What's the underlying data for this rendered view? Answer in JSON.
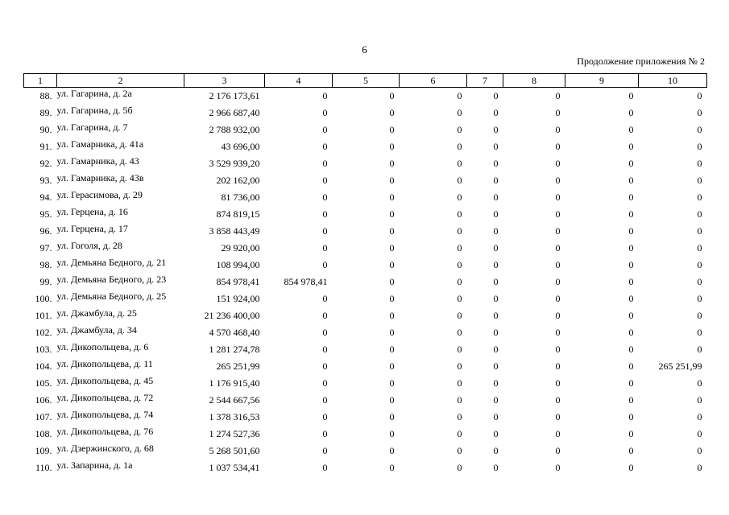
{
  "page_number": "6",
  "continuation_note": "Продолжение приложения № 2",
  "columns": [
    "1",
    "2",
    "3",
    "4",
    "5",
    "6",
    "7",
    "8",
    "9",
    "10"
  ],
  "rows": [
    {
      "n": "88.",
      "address": "ул. Гагарина, д. 2а",
      "c3": "2 176 173,61",
      "c4": "0",
      "c5": "0",
      "c6": "0",
      "c7": "0",
      "c8": "0",
      "c9": "0",
      "c10": "0"
    },
    {
      "n": "89.",
      "address": "ул. Гагарина, д. 5б",
      "c3": "2 966 687,40",
      "c4": "0",
      "c5": "0",
      "c6": "0",
      "c7": "0",
      "c8": "0",
      "c9": "0",
      "c10": "0"
    },
    {
      "n": "90.",
      "address": "ул. Гагарина, д. 7",
      "c3": "2 788 932,00",
      "c4": "0",
      "c5": "0",
      "c6": "0",
      "c7": "0",
      "c8": "0",
      "c9": "0",
      "c10": "0"
    },
    {
      "n": "91.",
      "address": "ул. Гамарника, д. 41а",
      "c3": "43 696,00",
      "c4": "0",
      "c5": "0",
      "c6": "0",
      "c7": "0",
      "c8": "0",
      "c9": "0",
      "c10": "0"
    },
    {
      "n": "92.",
      "address": "ул. Гамарника, д. 43",
      "c3": "3 529 939,20",
      "c4": "0",
      "c5": "0",
      "c6": "0",
      "c7": "0",
      "c8": "0",
      "c9": "0",
      "c10": "0"
    },
    {
      "n": "93.",
      "address": "ул. Гамарника, д. 43в",
      "c3": "202 162,00",
      "c4": "0",
      "c5": "0",
      "c6": "0",
      "c7": "0",
      "c8": "0",
      "c9": "0",
      "c10": "0"
    },
    {
      "n": "94.",
      "address": "ул. Герасимова, д. 29",
      "c3": "81 736,00",
      "c4": "0",
      "c5": "0",
      "c6": "0",
      "c7": "0",
      "c8": "0",
      "c9": "0",
      "c10": "0"
    },
    {
      "n": "95.",
      "address": "ул. Герцена, д. 16",
      "c3": "874 819,15",
      "c4": "0",
      "c5": "0",
      "c6": "0",
      "c7": "0",
      "c8": "0",
      "c9": "0",
      "c10": "0"
    },
    {
      "n": "96.",
      "address": "ул. Герцена, д. 17",
      "c3": "3 858 443,49",
      "c4": "0",
      "c5": "0",
      "c6": "0",
      "c7": "0",
      "c8": "0",
      "c9": "0",
      "c10": "0"
    },
    {
      "n": "97.",
      "address": "ул. Гоголя, д. 28",
      "c3": "29 920,00",
      "c4": "0",
      "c5": "0",
      "c6": "0",
      "c7": "0",
      "c8": "0",
      "c9": "0",
      "c10": "0"
    },
    {
      "n": "98.",
      "address": "ул. Демьяна Бедного, д. 21",
      "c3": "108 994,00",
      "c4": "0",
      "c5": "0",
      "c6": "0",
      "c7": "0",
      "c8": "0",
      "c9": "0",
      "c10": "0"
    },
    {
      "n": "99.",
      "address": "ул. Демьяна Бедного, д. 23",
      "c3": "854 978,41",
      "c4": "854 978,41",
      "c5": "0",
      "c6": "0",
      "c7": "0",
      "c8": "0",
      "c9": "0",
      "c10": "0"
    },
    {
      "n": "100.",
      "address": "ул. Демьяна Бедного, д. 25",
      "c3": "151 924,00",
      "c4": "0",
      "c5": "0",
      "c6": "0",
      "c7": "0",
      "c8": "0",
      "c9": "0",
      "c10": "0"
    },
    {
      "n": "101.",
      "address": "ул. Джамбула, д. 25",
      "c3": "21 236 400,00",
      "c4": "0",
      "c5": "0",
      "c6": "0",
      "c7": "0",
      "c8": "0",
      "c9": "0",
      "c10": "0"
    },
    {
      "n": "102.",
      "address": "ул. Джамбула, д. 34",
      "c3": "4 570 468,40",
      "c4": "0",
      "c5": "0",
      "c6": "0",
      "c7": "0",
      "c8": "0",
      "c9": "0",
      "c10": "0"
    },
    {
      "n": "103.",
      "address": "ул. Дикопольцева, д. 6",
      "c3": "1 281 274,78",
      "c4": "0",
      "c5": "0",
      "c6": "0",
      "c7": "0",
      "c8": "0",
      "c9": "0",
      "c10": "0"
    },
    {
      "n": "104.",
      "address": "ул. Дикопольцева, д. 11",
      "c3": "265 251,99",
      "c4": "0",
      "c5": "0",
      "c6": "0",
      "c7": "0",
      "c8": "0",
      "c9": "0",
      "c10": "265 251,99"
    },
    {
      "n": "105.",
      "address": "ул. Дикопольцева, д. 45",
      "c3": "1 176 915,40",
      "c4": "0",
      "c5": "0",
      "c6": "0",
      "c7": "0",
      "c8": "0",
      "c9": "0",
      "c10": "0"
    },
    {
      "n": "106.",
      "address": "ул. Дикопольцева, д. 72",
      "c3": "2 544 667,56",
      "c4": "0",
      "c5": "0",
      "c6": "0",
      "c7": "0",
      "c8": "0",
      "c9": "0",
      "c10": "0"
    },
    {
      "n": "107.",
      "address": "ул. Дикопольцева, д. 74",
      "c3": "1 378 316,53",
      "c4": "0",
      "c5": "0",
      "c6": "0",
      "c7": "0",
      "c8": "0",
      "c9": "0",
      "c10": "0"
    },
    {
      "n": "108.",
      "address": "ул. Дикопольцева, д. 76",
      "c3": "1 274 527,36",
      "c4": "0",
      "c5": "0",
      "c6": "0",
      "c7": "0",
      "c8": "0",
      "c9": "0",
      "c10": "0"
    },
    {
      "n": "109.",
      "address": "ул. Дзержинского, д. 68",
      "c3": "5 268 501,60",
      "c4": "0",
      "c5": "0",
      "c6": "0",
      "c7": "0",
      "c8": "0",
      "c9": "0",
      "c10": "0"
    },
    {
      "n": "110.",
      "address": "ул. Запарина, д. 1а",
      "c3": "1 037 534,41",
      "c4": "0",
      "c5": "0",
      "c6": "0",
      "c7": "0",
      "c8": "0",
      "c9": "0",
      "c10": "0"
    }
  ]
}
